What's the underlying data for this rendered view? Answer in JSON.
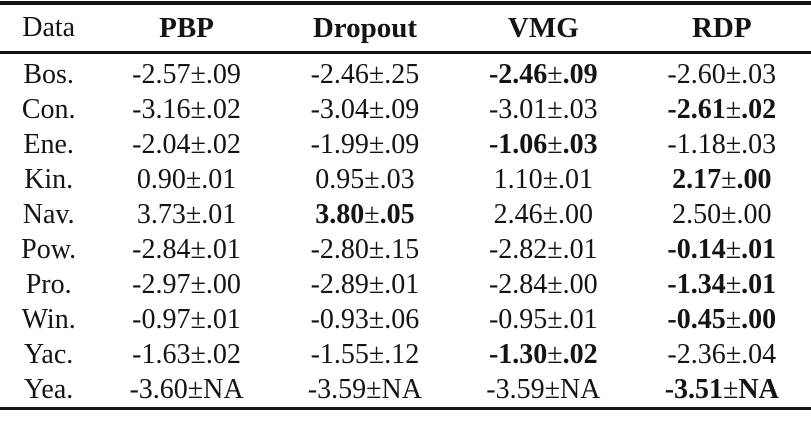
{
  "colors": {
    "background": "#ffffff",
    "text": "#141414",
    "rule": "#141414"
  },
  "table": {
    "columns": [
      "Data",
      "PBP",
      "Dropout",
      "VMG",
      "RDP"
    ],
    "rows": [
      {
        "label": "Bos.",
        "values": [
          "-2.57±.09",
          "-2.46±.25",
          "-2.46±.09",
          "-2.60±.03"
        ],
        "bold_index": 2
      },
      {
        "label": "Con.",
        "values": [
          "-3.16±.02",
          "-3.04±.09",
          "-3.01±.03",
          "-2.61±.02"
        ],
        "bold_index": 3
      },
      {
        "label": "Ene.",
        "values": [
          "-2.04±.02",
          "-1.99±.09",
          "-1.06±.03",
          "-1.18±.03"
        ],
        "bold_index": 2
      },
      {
        "label": "Kin.",
        "values": [
          "0.90±.01",
          "0.95±.03",
          "1.10±.01",
          "2.17±.00"
        ],
        "bold_index": 3
      },
      {
        "label": "Nav.",
        "values": [
          "3.73±.01",
          "3.80±.05",
          "2.46±.00",
          "2.50±.00"
        ],
        "bold_index": 1
      },
      {
        "label": "Pow.",
        "values": [
          "-2.84±.01",
          "-2.80±.15",
          "-2.82±.01",
          "-0.14±.01"
        ],
        "bold_index": 3
      },
      {
        "label": "Pro.",
        "values": [
          "-2.97±.00",
          "-2.89±.01",
          "-2.84±.00",
          "-1.34±.01"
        ],
        "bold_index": 3
      },
      {
        "label": "Win.",
        "values": [
          "-0.97±.01",
          "-0.93±.06",
          "-0.95±.01",
          "-0.45±.00"
        ],
        "bold_index": 3
      },
      {
        "label": "Yac.",
        "values": [
          "-1.63±.02",
          "-1.55±.12",
          "-1.30±.02",
          "-2.36±.04"
        ],
        "bold_index": 2
      },
      {
        "label": "Yea.",
        "values": [
          "-3.60±NA",
          "-3.59±NA",
          "-3.59±NA",
          "-3.51±NA"
        ],
        "bold_index": 3
      }
    ]
  },
  "chart_data": {
    "type": "table",
    "title": "",
    "columns": [
      "Data",
      "PBP",
      "Dropout",
      "VMG",
      "RDP"
    ],
    "rows": [
      [
        "Bos.",
        "-2.57±.09",
        "-2.46±.25",
        "-2.46±.09",
        "-2.60±.03"
      ],
      [
        "Con.",
        "-3.16±.02",
        "-3.04±.09",
        "-3.01±.03",
        "-2.61±.02"
      ],
      [
        "Ene.",
        "-2.04±.02",
        "-1.99±.09",
        "-1.06±.03",
        "-1.18±.03"
      ],
      [
        "Kin.",
        "0.90±.01",
        "0.95±.03",
        "1.10±.01",
        "2.17±.00"
      ],
      [
        "Nav.",
        "3.73±.01",
        "3.80±.05",
        "2.46±.00",
        "2.50±.00"
      ],
      [
        "Pow.",
        "-2.84±.01",
        "-2.80±.15",
        "-2.82±.01",
        "-0.14±.01"
      ],
      [
        "Pro.",
        "-2.97±.00",
        "-2.89±.01",
        "-2.84±.00",
        "-1.34±.01"
      ],
      [
        "Win.",
        "-0.97±.01",
        "-0.93±.06",
        "-0.95±.01",
        "-0.45±.00"
      ],
      [
        "Yac.",
        "-1.63±.02",
        "-1.55±.12",
        "-1.30±.02",
        "-2.36±.04"
      ],
      [
        "Yea.",
        "-3.60±NA",
        "-3.59±NA",
        "-3.59±NA",
        "-3.51±NA"
      ]
    ],
    "bold_best_cells": [
      [
        "Bos.",
        "VMG"
      ],
      [
        "Con.",
        "RDP"
      ],
      [
        "Ene.",
        "VMG"
      ],
      [
        "Kin.",
        "RDP"
      ],
      [
        "Nav.",
        "Dropout"
      ],
      [
        "Pow.",
        "RDP"
      ],
      [
        "Pro.",
        "RDP"
      ],
      [
        "Win.",
        "RDP"
      ],
      [
        "Yac.",
        "VMG"
      ],
      [
        "Yea.",
        "RDP"
      ]
    ]
  }
}
